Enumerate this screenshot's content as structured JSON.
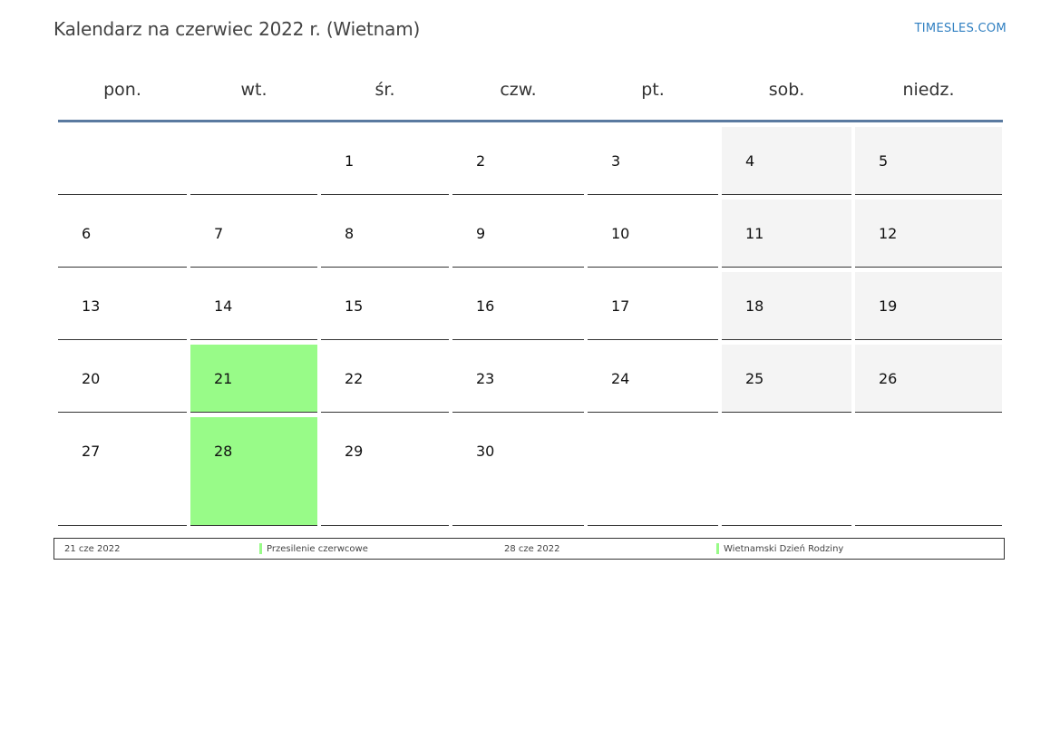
{
  "title": "Kalendarz na czerwiec 2022 r. (Wietnam)",
  "brand": "TIMESLES.COM",
  "colors": {
    "holiday": "#98fb88",
    "weekend": "#f4f4f4",
    "header_rule": "#5a7aa0",
    "brand": "#2f7fc1"
  },
  "weekdays": [
    "pon.",
    "wt.",
    "śr.",
    "czw.",
    "pt.",
    "sob.",
    "niedz."
  ],
  "weeks": [
    [
      "",
      "",
      "1",
      "2",
      "3",
      "4",
      "5"
    ],
    [
      "6",
      "7",
      "8",
      "9",
      "10",
      "11",
      "12"
    ],
    [
      "13",
      "14",
      "15",
      "16",
      "17",
      "18",
      "19"
    ],
    [
      "20",
      "21",
      "22",
      "23",
      "24",
      "25",
      "26"
    ],
    [
      "27",
      "28",
      "29",
      "30",
      "",
      "",
      ""
    ]
  ],
  "holiday_days": [
    "21",
    "28"
  ],
  "legend": [
    {
      "date": "21 cze 2022",
      "name": "Przesilenie czerwcowe"
    },
    {
      "date": "28 cze 2022",
      "name": "Wietnamski Dzień Rodziny"
    }
  ]
}
